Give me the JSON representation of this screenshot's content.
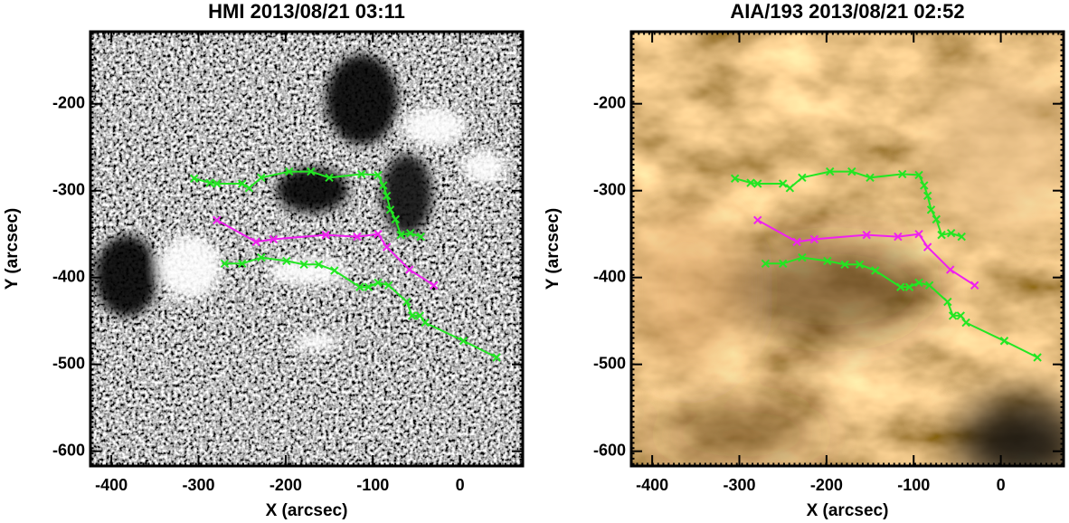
{
  "chart_data": [
    {
      "type": "line",
      "title": "HMI 2013/08/21 03:11",
      "x_label": "X (arcsec)",
      "y_label": "Y (arcsec)",
      "xlim": [
        -424,
        72
      ],
      "ylim": [
        -617,
        -117
      ],
      "xticks": [
        -400,
        -300,
        -200,
        -100,
        0
      ],
      "yticks": [
        -200,
        -300,
        -400,
        -500,
        -600
      ],
      "series": [
        {
          "color": "#22e622",
          "x": [
            -305,
            -287,
            -279,
            -250,
            -242,
            -228,
            -196,
            -171,
            -150,
            -113,
            -94,
            -88,
            -84,
            -80,
            -74,
            -68,
            -57,
            -45
          ],
          "values": [
            -286,
            -291,
            -292,
            -292,
            -297,
            -285,
            -278,
            -278,
            -285,
            -281,
            -282,
            -294,
            -306,
            -322,
            -333,
            -351,
            -349,
            -353
          ]
        },
        {
          "color": "#f020f0",
          "x": [
            -279,
            -234,
            -214,
            -154,
            -118,
            -94,
            -84,
            -58,
            -30
          ],
          "values": [
            -334,
            -359,
            -356,
            -351,
            -353,
            -350,
            -365,
            -391,
            -409
          ]
        },
        {
          "color": "#22e622",
          "x": [
            -270,
            -250,
            -228,
            -199,
            -179,
            -162,
            -144,
            -115,
            -105,
            -94,
            -82,
            -61,
            -55,
            -46,
            -40,
            4,
            42
          ],
          "values": [
            -384,
            -384,
            -377,
            -381,
            -385,
            -385,
            -392,
            -411,
            -411,
            -406,
            -409,
            -428,
            -444,
            -444,
            -452,
            -473,
            -492
          ]
        }
      ]
    },
    {
      "type": "line",
      "title": "AIA/193 2013/08/21 02:52",
      "x_label": "X (arcsec)",
      "y_label": "Y (arcsec)",
      "xlim": [
        -424,
        72
      ],
      "ylim": [
        -617,
        -117
      ],
      "xticks": [
        -400,
        -300,
        -200,
        -100,
        0
      ],
      "yticks": [
        -200,
        -300,
        -400,
        -500,
        -600
      ],
      "series": [
        {
          "color": "#22e622",
          "x": [
            -305,
            -287,
            -279,
            -250,
            -242,
            -228,
            -196,
            -171,
            -150,
            -113,
            -94,
            -88,
            -84,
            -80,
            -74,
            -68,
            -57,
            -45
          ],
          "values": [
            -286,
            -291,
            -292,
            -292,
            -297,
            -285,
            -278,
            -278,
            -285,
            -281,
            -282,
            -294,
            -306,
            -322,
            -333,
            -351,
            -349,
            -353
          ]
        },
        {
          "color": "#f020f0",
          "x": [
            -279,
            -234,
            -214,
            -154,
            -118,
            -94,
            -84,
            -58,
            -30
          ],
          "values": [
            -334,
            -359,
            -356,
            -351,
            -353,
            -350,
            -365,
            -391,
            -409
          ]
        },
        {
          "color": "#22e622",
          "x": [
            -270,
            -250,
            -228,
            -199,
            -179,
            -162,
            -144,
            -115,
            -105,
            -94,
            -82,
            -61,
            -55,
            -46,
            -40,
            4,
            42
          ],
          "values": [
            -384,
            -384,
            -377,
            -381,
            -385,
            -385,
            -392,
            -411,
            -411,
            -406,
            -409,
            -428,
            -444,
            -444,
            -452,
            -473,
            -492
          ]
        }
      ]
    }
  ]
}
